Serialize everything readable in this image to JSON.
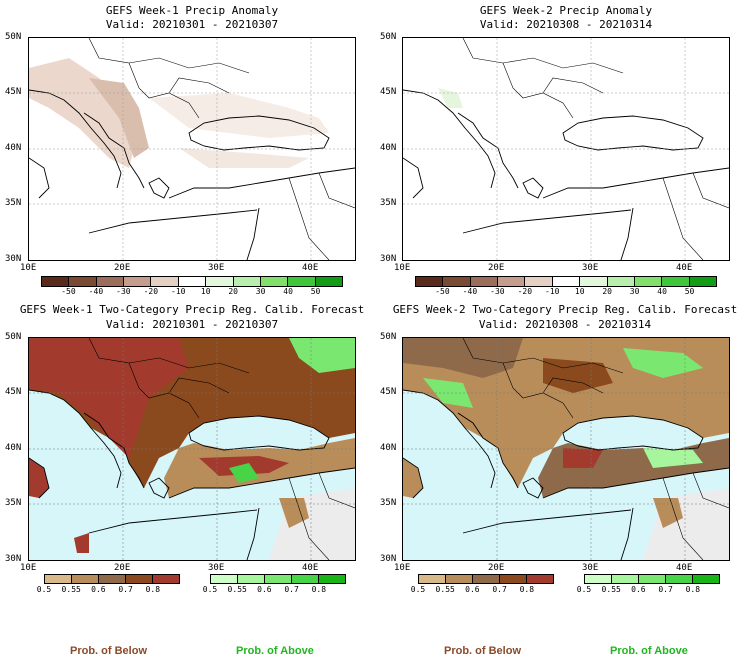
{
  "panels": {
    "p1": {
      "title": "GEFS Week-1 Precip Anomaly",
      "valid": "Valid: 20210301 - 20210307"
    },
    "p2": {
      "title": "GEFS Week-2 Precip Anomaly",
      "valid": "Valid: 20210308 - 20210314"
    },
    "p3": {
      "title": "GEFS Week-1 Two-Category Precip Reg. Calib. Forecast",
      "valid": "Valid: 20210301 - 20210307"
    },
    "p4": {
      "title": "GEFS Week-2 Two-Category Precip Reg. Calib. Forecast",
      "valid": "Valid: 20210308 - 20210314"
    }
  },
  "axes": {
    "lat_labels": [
      "50N",
      "45N",
      "40N",
      "35N",
      "30N"
    ],
    "lon_labels": [
      "10E",
      "20E",
      "30E",
      "40E"
    ]
  },
  "anomaly_colorbar": {
    "labels": [
      "-50",
      "-40",
      "-30",
      "-20",
      "-10",
      "10",
      "20",
      "30",
      "40",
      "50"
    ],
    "colors": [
      "#5a2a1a",
      "#7a4a35",
      "#9c6d5a",
      "#c59d8c",
      "#e6cfc3",
      "#ffffff",
      "#e2f7dc",
      "#b9efad",
      "#82df6c",
      "#3fc63a",
      "#139c16"
    ]
  },
  "prob_colorbars": {
    "below_labels": [
      "0.5",
      "0.55",
      "0.6",
      "0.7",
      "0.8"
    ],
    "below_colors": [
      "#d8b98a",
      "#b98d5a",
      "#8f6a4a",
      "#8a4a1e",
      "#a33a2e"
    ],
    "above_labels": [
      "0.5",
      "0.55",
      "0.6",
      "0.7",
      "0.8"
    ],
    "above_colors": [
      "#cfffc9",
      "#a7f59c",
      "#7ae870",
      "#47d447",
      "#18b418"
    ]
  },
  "legend_text": {
    "below": "Prob. of Below",
    "above": "Prob. of Above"
  },
  "colors": {
    "sea": "#d6f6fa",
    "no_data": "#ececec",
    "land_white": "#ffffff"
  }
}
